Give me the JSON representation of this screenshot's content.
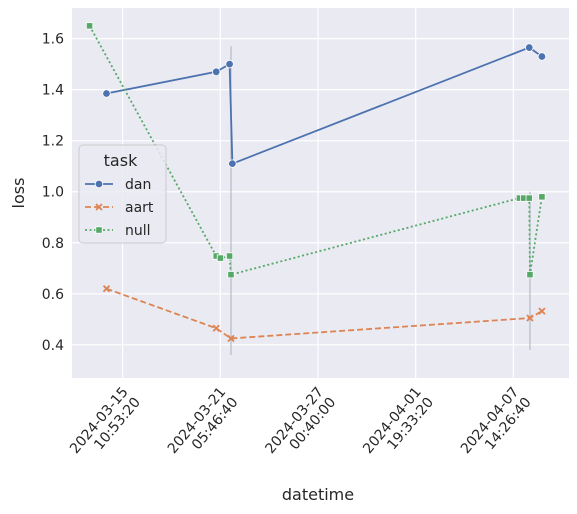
{
  "chart_data": {
    "type": "line",
    "xlabel": "datetime",
    "ylabel": "loss",
    "x_ticks": [
      {
        "date": "2024-03-15T10:53:20",
        "lines": [
          "2024-03-15",
          "10:53:20"
        ]
      },
      {
        "date": "2024-03-21T05:46:40",
        "lines": [
          "2024-03-21",
          "05:46:40"
        ]
      },
      {
        "date": "2024-03-27T00:40:00",
        "lines": [
          "2024-03-27",
          "00:40:00"
        ]
      },
      {
        "date": "2024-04-01T19:33:20",
        "lines": [
          "2024-04-01",
          "19:33:20"
        ]
      },
      {
        "date": "2024-04-07T14:26:40",
        "lines": [
          "2024-04-07",
          "14:26:40"
        ]
      }
    ],
    "y_ticks": [
      0.4,
      0.6,
      0.8,
      1.0,
      1.2,
      1.4,
      1.6
    ],
    "ylim": [
      0.27,
      1.72
    ],
    "xlim": [
      "2024-03-12T11:00:00",
      "2024-04-10T21:30:00"
    ],
    "grid": true,
    "legend": {
      "title": "task",
      "position": "center-left"
    },
    "series": [
      {
        "name": "dan",
        "color": "#4c72b0",
        "marker": "circle",
        "dash": "solid",
        "points": [
          {
            "x": "2024-03-14T12:00:00",
            "y": 1.385
          },
          {
            "x": "2024-03-21T00:00:00",
            "y": 1.47
          },
          {
            "x": "2024-03-21T19:00:00",
            "y": 1.5
          },
          {
            "x": "2024-03-21T23:00:00",
            "y": 1.11
          },
          {
            "x": "2024-04-08T13:00:00",
            "y": 1.565
          },
          {
            "x": "2024-04-09T07:00:00",
            "y": 1.53
          }
        ]
      },
      {
        "name": "aart",
        "color": "#dd8452",
        "marker": "x",
        "dash": "dashed",
        "points": [
          {
            "x": "2024-03-14T12:00:00",
            "y": 0.62
          },
          {
            "x": "2024-03-21T00:00:00",
            "y": 0.465
          },
          {
            "x": "2024-03-21T21:00:00",
            "y": 0.425
          },
          {
            "x": "2024-04-08T14:00:00",
            "y": 0.505
          },
          {
            "x": "2024-04-09T07:00:00",
            "y": 0.532
          }
        ]
      },
      {
        "name": "null",
        "color": "#55a868",
        "marker": "square",
        "dash": "dotted",
        "points": [
          {
            "x": "2024-03-13T12:00:00",
            "y": 1.65
          },
          {
            "x": "2024-03-21T00:00:00",
            "y": 0.748
          },
          {
            "x": "2024-03-21T06:00:00",
            "y": 0.74
          },
          {
            "x": "2024-03-21T19:00:00",
            "y": 0.748
          },
          {
            "x": "2024-03-21T21:00:00",
            "y": 0.675
          },
          {
            "x": "2024-04-07T23:00:00",
            "y": 0.975
          },
          {
            "x": "2024-04-08T05:00:00",
            "y": 0.975
          },
          {
            "x": "2024-04-08T13:00:00",
            "y": 0.975
          },
          {
            "x": "2024-04-08T14:00:00",
            "y": 0.675
          },
          {
            "x": "2024-04-09T07:00:00",
            "y": 0.98
          }
        ]
      }
    ]
  }
}
